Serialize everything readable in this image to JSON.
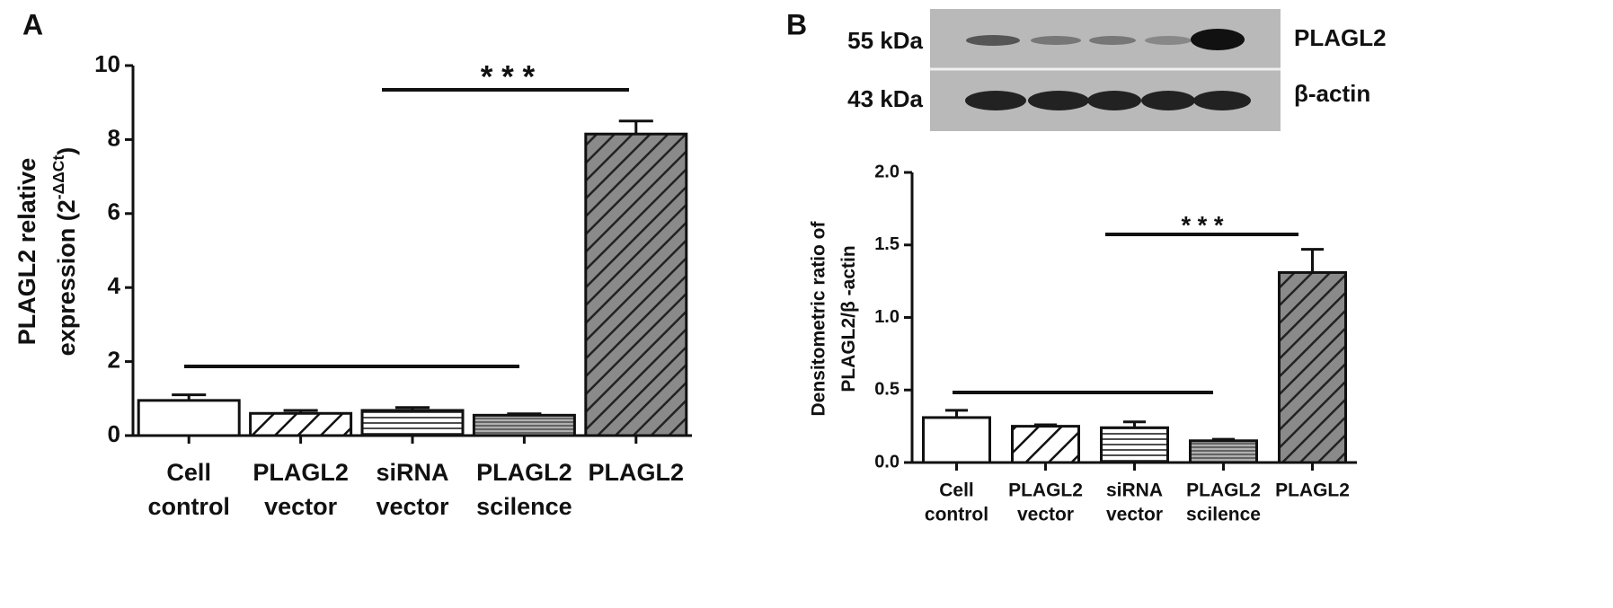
{
  "chart_data": [
    {
      "type": "bar",
      "panel_label": "A",
      "ylabel": [
        "PLAGL2 relative",
        "expression (2"
      ],
      "ylabel_superscript": "-ΔΔCt",
      "ylabel_end": ")",
      "categories": [
        [
          "Cell",
          "control"
        ],
        [
          "PLAGL2",
          "vector"
        ],
        [
          "siRNA",
          "vector"
        ],
        [
          "PLAGL2",
          "scilence"
        ],
        [
          "PLAGL2"
        ]
      ],
      "values": [
        0.95,
        0.6,
        0.68,
        0.55,
        8.15
      ],
      "errors": [
        0.15,
        0.08,
        0.08,
        0.04,
        0.35
      ],
      "bar_fills": [
        "#ffffff",
        "#ffffff",
        "#ffffff",
        "#b0b0b0",
        "#8a8a8a"
      ],
      "hatches": [
        "none",
        "diag-sparse",
        "horiz-sparse",
        "horiz-dense",
        "diag-dense"
      ],
      "ylim": [
        0,
        10
      ],
      "yticks": [
        0,
        2,
        4,
        6,
        8,
        10
      ],
      "annotations": [
        "* * *"
      ]
    },
    {
      "type": "bar",
      "panel_label": "B",
      "ylabel": [
        "Densitometric ratio of",
        "PLAGL2/β -actin"
      ],
      "blot_markers": [
        "55 kDa",
        "43 kDa"
      ],
      "blot_labels": [
        "PLAGL2",
        "β-actin"
      ],
      "categories": [
        [
          "Cell",
          "control"
        ],
        [
          "PLAGL2",
          "vector"
        ],
        [
          "siRNA",
          "vector"
        ],
        [
          "PLAGL2",
          "scilence"
        ],
        [
          "PLAGL2"
        ]
      ],
      "values": [
        0.31,
        0.25,
        0.24,
        0.15,
        1.31
      ],
      "errors": [
        0.05,
        0.01,
        0.04,
        0.01,
        0.16
      ],
      "bar_fills": [
        "#ffffff",
        "#ffffff",
        "#ffffff",
        "#b0b0b0",
        "#8a8a8a"
      ],
      "hatches": [
        "none",
        "diag-sparse",
        "horiz-sparse",
        "horiz-dense",
        "diag-dense"
      ],
      "ylim": [
        0,
        2
      ],
      "yticks": [
        {
          "value": 0,
          "label": "0.0"
        },
        0.5,
        {
          "value": 1,
          "label": "1.0"
        },
        1.5,
        {
          "value": 2,
          "label": "2.0"
        }
      ],
      "annotations": [
        "* * *"
      ]
    }
  ]
}
